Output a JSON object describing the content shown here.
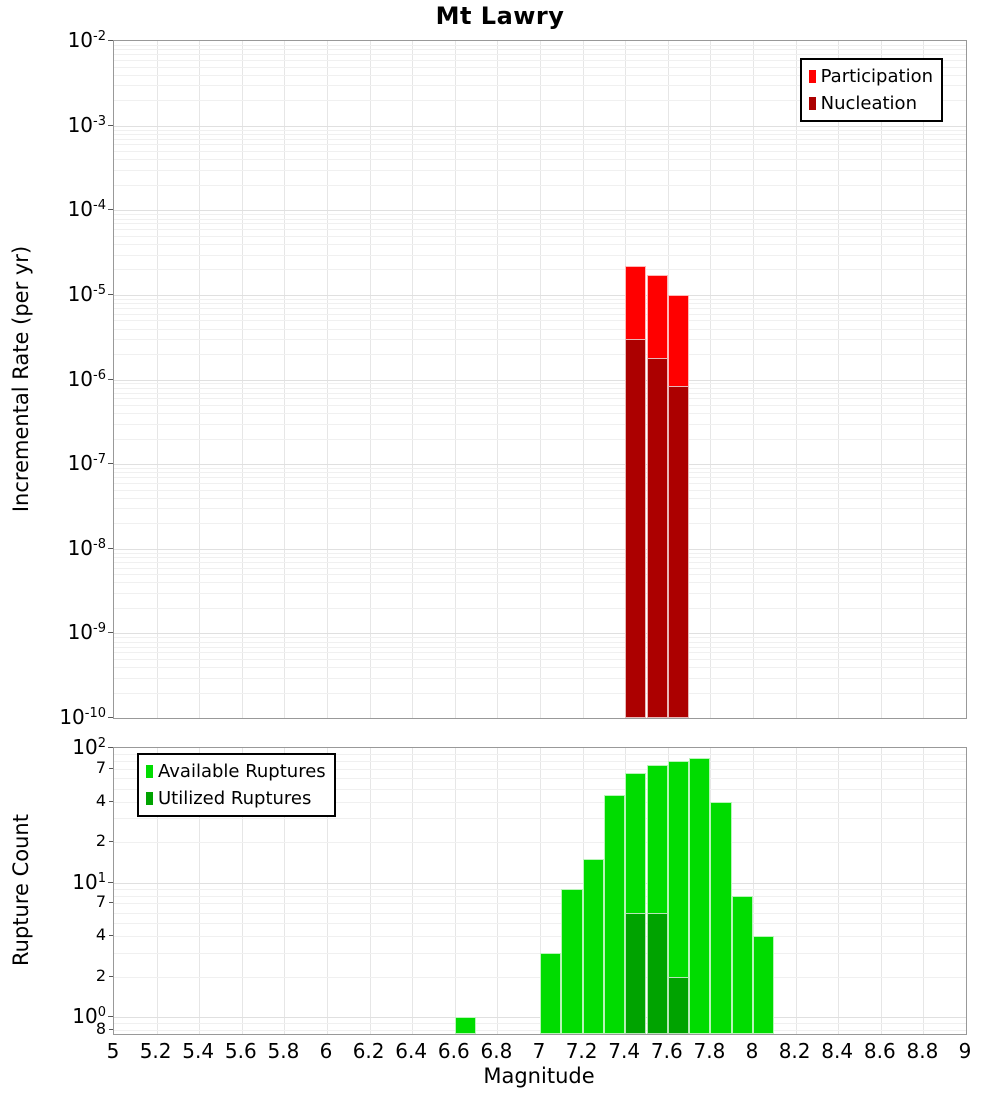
{
  "title": "Mt Lawry",
  "x_axis": {
    "label": "Magnitude",
    "tick_labels": [
      "5",
      "5.2",
      "5.4",
      "5.6",
      "5.8",
      "6",
      "6.2",
      "6.4",
      "6.6",
      "6.8",
      "7",
      "7.2",
      "7.4",
      "7.6",
      "7.8",
      "8",
      "8.2",
      "8.4",
      "8.6",
      "8.8",
      "9"
    ]
  },
  "chart_data": [
    {
      "panel": "top",
      "type": "bar",
      "title": "Mt Lawry",
      "xlabel": "Magnitude",
      "ylabel": "Incremental Rate (per yr)",
      "yscale": "log",
      "xlim": [
        5,
        9
      ],
      "ylim": [
        1e-10,
        0.01
      ],
      "grid": true,
      "bar_width": 0.1,
      "legend_position": "top-right",
      "yticks": [
        {
          "label": "10^-2",
          "value": 0.01,
          "major": true
        },
        {
          "label": "10^-3",
          "value": 0.001,
          "major": true
        },
        {
          "label": "10^-4",
          "value": 0.0001,
          "major": true
        },
        {
          "label": "10^-5",
          "value": 1e-05,
          "major": true
        },
        {
          "label": "10^-6",
          "value": 1e-06,
          "major": true
        },
        {
          "label": "10^-7",
          "value": 1e-07,
          "major": true
        },
        {
          "label": "10^-8",
          "value": 1e-08,
          "major": true
        },
        {
          "label": "10^-9",
          "value": 1e-09,
          "major": true
        },
        {
          "label": "10^-10",
          "value": 1e-10,
          "major": true
        }
      ],
      "x": [
        7.45,
        7.55,
        7.65
      ],
      "series": [
        {
          "name": "Participation",
          "color": "#FF0000",
          "values": [
            2.2e-05,
            1.7e-05,
            1e-05
          ]
        },
        {
          "name": "Nucleation",
          "color": "#AC0000",
          "values": [
            3e-06,
            1.8e-06,
            8.5e-07
          ]
        }
      ]
    },
    {
      "panel": "bottom",
      "type": "bar",
      "xlabel": "Magnitude",
      "ylabel": "Rupture Count",
      "yscale": "log",
      "xlim": [
        5,
        9
      ],
      "ylim": [
        0.75,
        100
      ],
      "grid": true,
      "bar_width": 0.1,
      "legend_position": "top-left",
      "yticks": [
        {
          "label": "10^2",
          "value": 100,
          "major": true
        },
        {
          "label": "7",
          "value": 70,
          "major": false
        },
        {
          "label": "4",
          "value": 40,
          "major": false
        },
        {
          "label": "2",
          "value": 20,
          "major": false
        },
        {
          "label": "10^1",
          "value": 10,
          "major": true
        },
        {
          "label": "7",
          "value": 7,
          "major": false
        },
        {
          "label": "4",
          "value": 4,
          "major": false
        },
        {
          "label": "2",
          "value": 2,
          "major": false
        },
        {
          "label": "10^0",
          "value": 1,
          "major": true
        },
        {
          "label": "8",
          "value": 0.8,
          "major": false
        }
      ],
      "x": [
        6.65,
        7.05,
        7.15,
        7.25,
        7.35,
        7.45,
        7.55,
        7.65,
        7.75,
        7.85,
        7.95,
        8.05
      ],
      "series": [
        {
          "name": "Available Ruptures",
          "color": "#00DC00",
          "values": [
            1,
            3,
            9,
            15,
            45,
            65,
            75,
            80,
            85,
            40,
            8,
            4
          ]
        },
        {
          "name": "Utilized Ruptures",
          "color": "#00A300",
          "values": [
            null,
            null,
            null,
            null,
            null,
            6,
            6,
            2,
            null,
            null,
            null,
            null
          ]
        }
      ]
    }
  ]
}
